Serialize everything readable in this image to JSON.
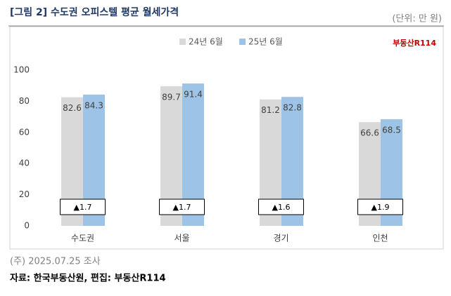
{
  "header": {
    "title": "[그림 2] 수도권 오피스텔 평균 월세가격",
    "unit": "(단위: 만 원)"
  },
  "chart_data": {
    "type": "bar",
    "categories": [
      "수도권",
      "서울",
      "경기",
      "인천"
    ],
    "series": [
      {
        "name": "24년 6월",
        "color": "#d9d9d9",
        "values": [
          82.6,
          89.7,
          81.2,
          66.6
        ]
      },
      {
        "name": "25년 6월",
        "color": "#9dc3e6",
        "values": [
          84.3,
          91.4,
          82.8,
          68.5
        ]
      }
    ],
    "annotations": [
      "▲1.7",
      "▲1.7",
      "▲1.6",
      "▲1.9"
    ],
    "ylim": [
      0,
      100
    ],
    "yticks": [
      0,
      20,
      40,
      60,
      80,
      100
    ],
    "grid": false,
    "logo": "부동산R114"
  },
  "footer": {
    "note": "(주) 2025.07.25 조사",
    "source": "자료: 한국부동산원, 편집: 부동산R114"
  }
}
